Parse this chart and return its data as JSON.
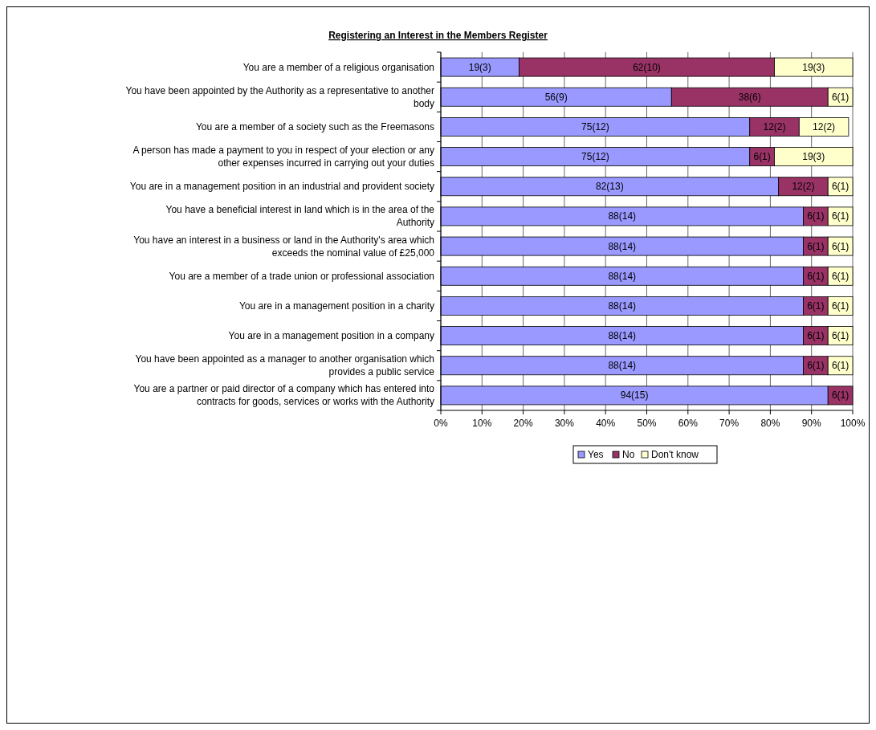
{
  "chart_data": {
    "type": "bar",
    "orientation": "horizontal",
    "stacked": true,
    "title": "Registering an Interest in the Members Register",
    "categories": [
      "You are a member of a religious organisation",
      "You have been appointed by the Authority as a representative to another body",
      "You are a member of a society such as the Freemasons",
      "A person has made a payment to you in respect of your election or any other expenses incurred in carrying out your duties",
      "You are in a management position in an industrial and provident society",
      "You have a beneficial interest in land which is in the area of the Authority",
      "You have an interest in a business or land in the Authority's area which exceeds the nominal value of £25,000",
      "You are a member of a trade union or professional association",
      "You are in a management position in a charity",
      "You are in a management position in a company",
      "You have been appointed as a manager to another organisation which provides a public service",
      "You are a partner or paid director of a company which has entered into contracts for goods, services or works with the Authority"
    ],
    "series": [
      {
        "name": "Yes",
        "color": "#9999ff",
        "values": [
          19,
          56,
          75,
          75,
          82,
          88,
          88,
          88,
          88,
          88,
          88,
          94
        ],
        "value_labels": [
          "19(3)",
          "56(9)",
          "75(12)",
          "75(12)",
          "82(13)",
          "88(14)",
          "88(14)",
          "88(14)",
          "88(14)",
          "88(14)",
          "88(14)",
          "94(15)"
        ]
      },
      {
        "name": "No",
        "color": "#993366",
        "values": [
          62,
          38,
          12,
          6,
          12,
          6,
          6,
          6,
          6,
          6,
          6,
          6
        ],
        "value_labels": [
          "62(10)",
          "38(6)",
          "12(2)",
          "6(1)",
          "12(2)",
          "6(1)",
          "6(1)",
          "6(1)",
          "6(1)",
          "6(1)",
          "6(1)",
          "6(1)"
        ]
      },
      {
        "name": "Don't know",
        "color": "#ffffcc",
        "values": [
          19,
          6,
          12,
          19,
          6,
          6,
          6,
          6,
          6,
          6,
          6,
          null
        ],
        "value_labels": [
          "19(3)",
          "6(1)",
          "12(2)",
          "19(3)",
          "6(1)",
          "6(1)",
          "6(1)",
          "6(1)",
          "6(1)",
          "6(1)",
          "6(1)",
          null
        ]
      }
    ],
    "xlim": [
      0,
      100
    ],
    "xticks": [
      {
        "value": 0,
        "label": "0%"
      },
      {
        "value": 10,
        "label": "10%"
      },
      {
        "value": 20,
        "label": "20%"
      },
      {
        "value": 30,
        "label": "30%"
      },
      {
        "value": 40,
        "label": "40%"
      },
      {
        "value": 50,
        "label": "50%"
      },
      {
        "value": 60,
        "label": "60%"
      },
      {
        "value": 70,
        "label": "70%"
      },
      {
        "value": 80,
        "label": "80%"
      },
      {
        "value": 90,
        "label": "90%"
      },
      {
        "value": 100,
        "label": "100%"
      }
    ],
    "grid": "x",
    "legend": "bottom"
  }
}
